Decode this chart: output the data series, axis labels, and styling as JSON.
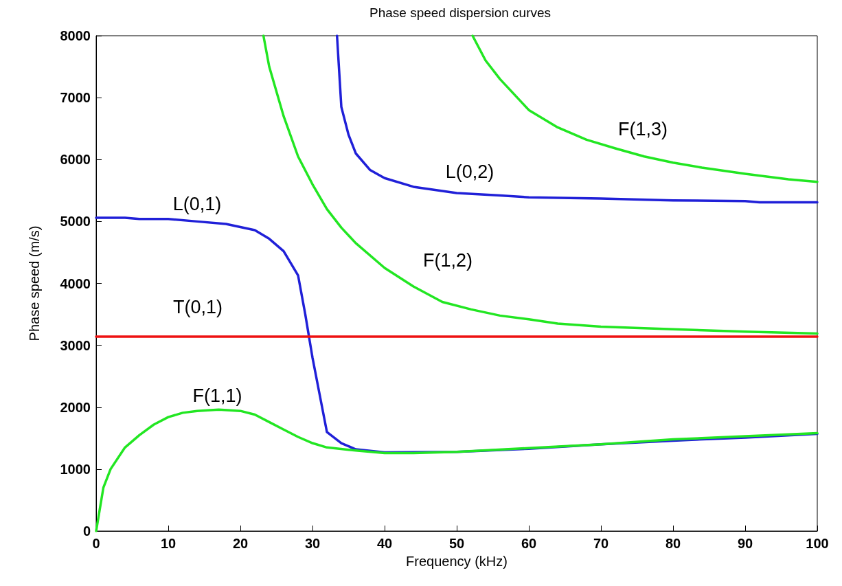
{
  "chart_data": {
    "type": "line",
    "title": "Phase speed dispersion curves",
    "xlabel": "Frequency (kHz)",
    "ylabel": "Phase speed (m/s)",
    "xlim": [
      0,
      100
    ],
    "xticks": [
      0,
      10,
      20,
      30,
      40,
      50,
      60,
      70,
      80,
      90,
      100
    ],
    "ylim": [
      0,
      8000
    ],
    "yticks": [
      0,
      1000,
      2000,
      3000,
      4000,
      5000,
      6000,
      7000,
      8000
    ],
    "grid": false,
    "marker": "none",
    "line_style": "solid",
    "series": [
      {
        "name": "L(0,1)",
        "color": "#2020d8",
        "x": [
          0,
          4,
          6,
          10,
          14,
          18,
          22,
          24,
          26,
          28,
          29,
          30,
          31,
          32,
          34,
          36,
          40,
          50,
          60,
          70,
          80,
          90,
          100
        ],
        "values": [
          5060,
          5060,
          5040,
          5040,
          5000,
          4960,
          4860,
          4720,
          4520,
          4130,
          3500,
          2800,
          2200,
          1600,
          1420,
          1320,
          1270,
          1280,
          1330,
          1400,
          1460,
          1510,
          1570
        ]
      },
      {
        "name": "F(1,1)",
        "color": "#22e622",
        "x": [
          0,
          1,
          2,
          4,
          6,
          8,
          10,
          12,
          14,
          17,
          20,
          22,
          24,
          26,
          28,
          30,
          32,
          36,
          40,
          44,
          50,
          60,
          70,
          80,
          90,
          100
        ],
        "values": [
          0,
          700,
          1000,
          1350,
          1550,
          1720,
          1840,
          1910,
          1940,
          1960,
          1940,
          1880,
          1760,
          1640,
          1520,
          1420,
          1350,
          1300,
          1260,
          1260,
          1280,
          1340,
          1400,
          1480,
          1530,
          1580
        ]
      },
      {
        "name": "F(1,2)",
        "color": "#22e622",
        "x": [
          23.2,
          24,
          26,
          28,
          30,
          32,
          34,
          36,
          40,
          44,
          48,
          52,
          56,
          60,
          64,
          70,
          80,
          90,
          100
        ],
        "values": [
          8000,
          7500,
          6700,
          6050,
          5600,
          5200,
          4900,
          4650,
          4250,
          3950,
          3700,
          3580,
          3480,
          3420,
          3350,
          3300,
          3260,
          3220,
          3190
        ]
      },
      {
        "name": "L(0,2)",
        "color": "#2020d8",
        "x": [
          33.4,
          34,
          35,
          36,
          38,
          40,
          44,
          50,
          56,
          60,
          70,
          80,
          90,
          92,
          100
        ],
        "values": [
          8000,
          6850,
          6400,
          6100,
          5830,
          5700,
          5560,
          5460,
          5420,
          5390,
          5370,
          5340,
          5330,
          5310,
          5310
        ]
      },
      {
        "name": "F(1,3)",
        "color": "#22e622",
        "x": [
          52.2,
          54,
          56,
          58,
          60,
          64,
          68,
          72,
          76,
          80,
          84,
          90,
          96,
          100
        ],
        "values": [
          8000,
          7600,
          7300,
          7050,
          6800,
          6520,
          6320,
          6180,
          6050,
          5950,
          5870,
          5770,
          5680,
          5640
        ]
      },
      {
        "name": "T(0,1)",
        "color": "#ee1111",
        "x": [
          0,
          100
        ],
        "values": [
          3140,
          3140
        ]
      }
    ]
  }
}
